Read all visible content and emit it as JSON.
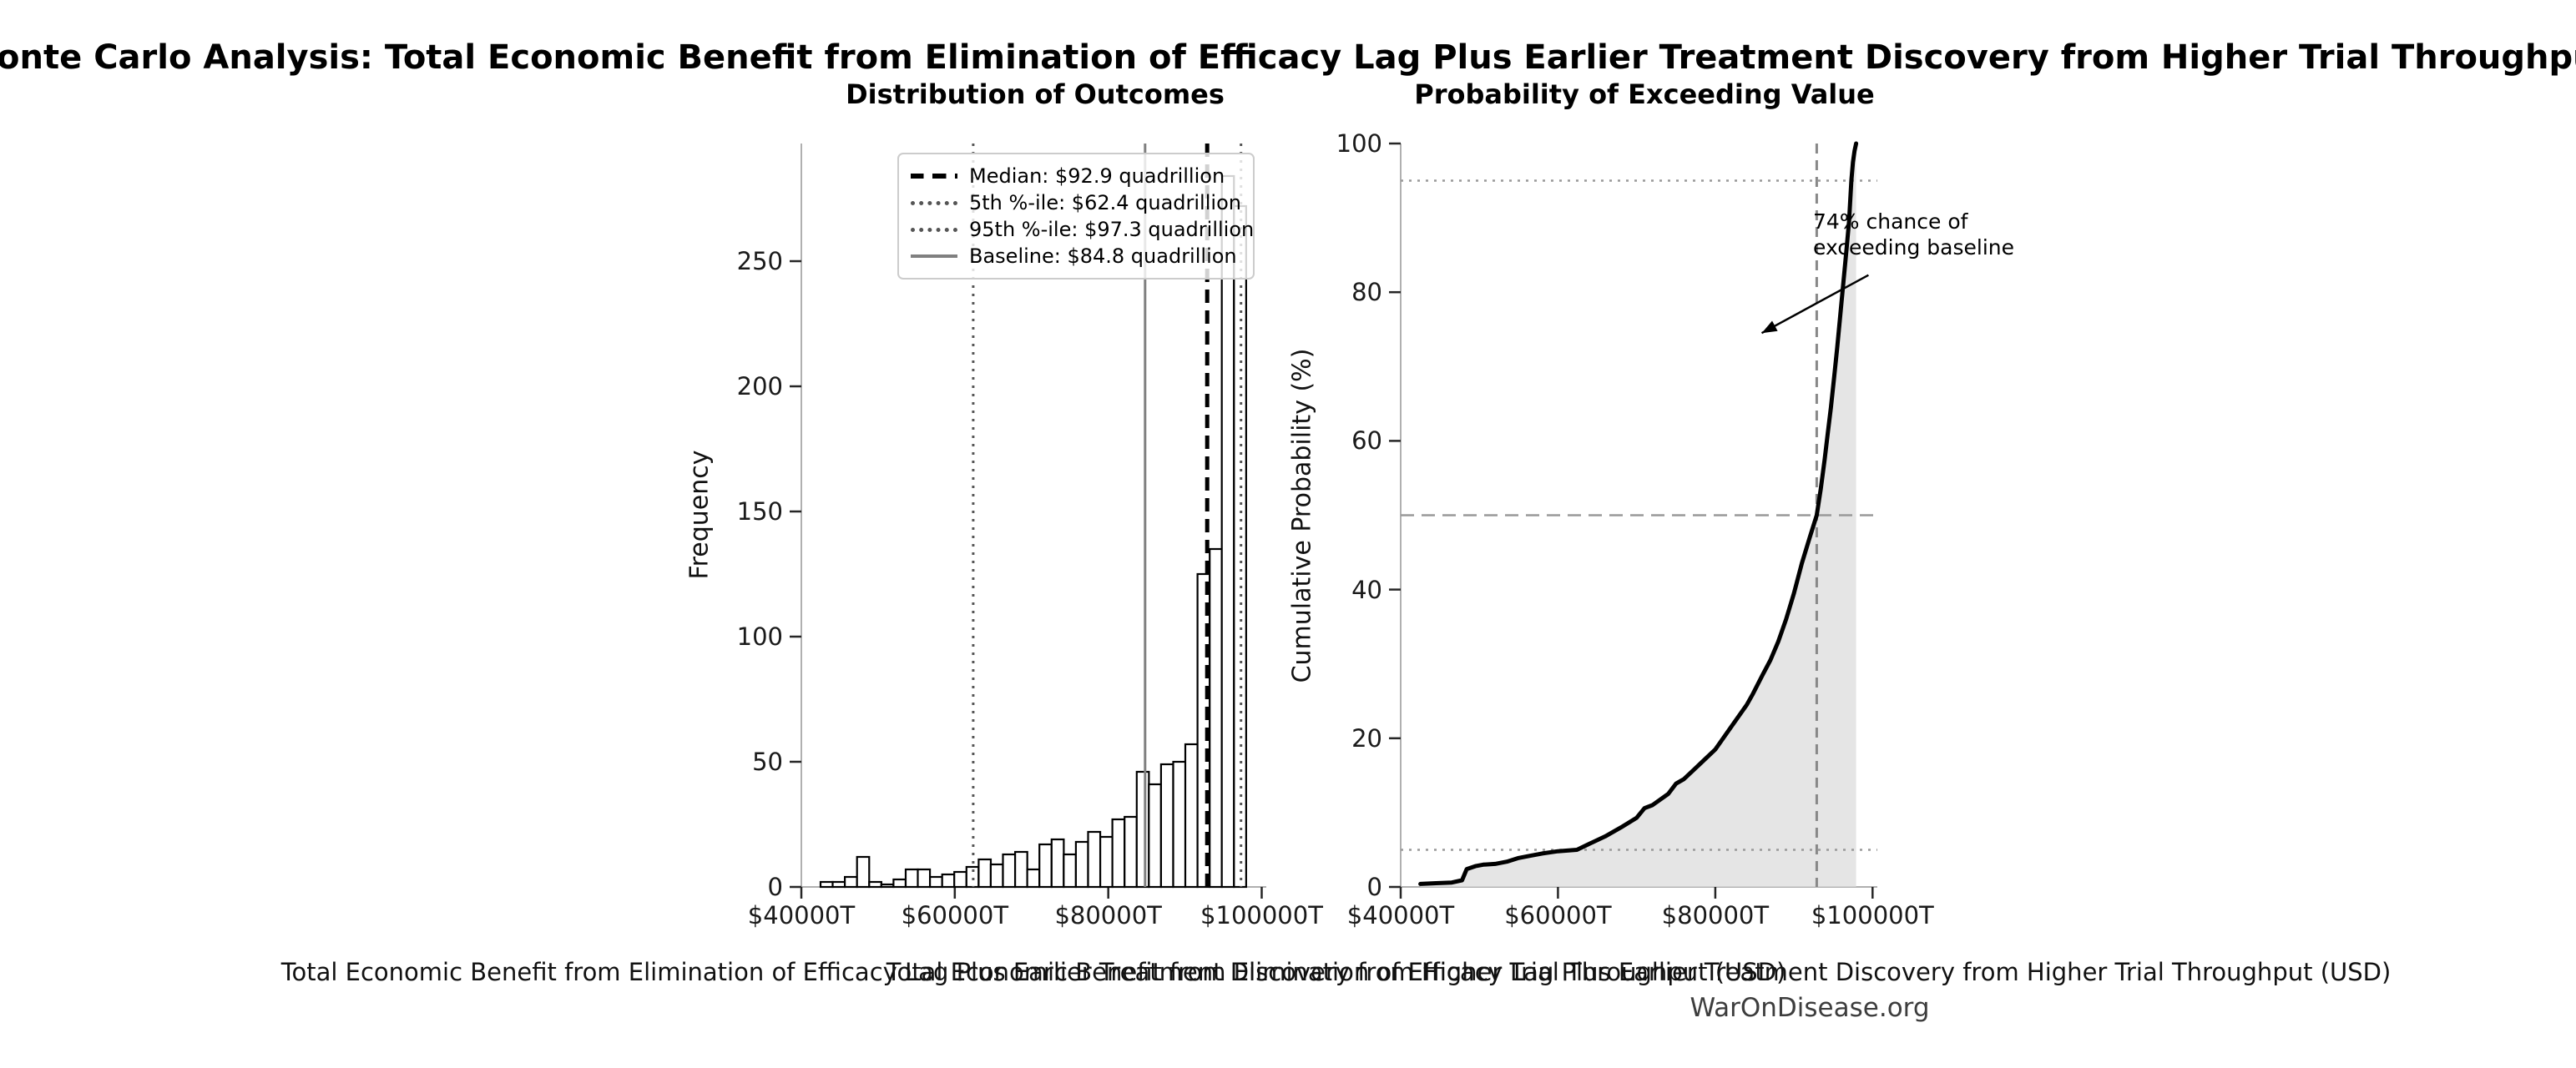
{
  "title": "Monte Carlo Analysis: Total Economic Benefit from Elimination of Efficacy Lag Plus Earlier Treatment Discovery from Higher Trial Throughput",
  "footer": "WarOnDisease.org",
  "colors": {
    "background": "#ffffff",
    "bar_fill": "#ffffff",
    "bar_edge": "#000000",
    "median_line": "#000000",
    "percentile_line": "#555555",
    "baseline_line": "#808080",
    "cdf_line": "#000000",
    "cdf_fill": "#dcdcdc",
    "grid_ref": "#999999",
    "spine": "#b0b0b0",
    "tick": "#262626",
    "footer_text": "#3d3d3d"
  },
  "chart_data": [
    {
      "type": "bar",
      "title": "Distribution of Outcomes",
      "xlabel": "Total Economic Benefit from Elimination of Efficacy Lag Plus Earlier Treatment Discovery from Higher Trial Throughput (USD)",
      "ylabel": "Frequency",
      "xlim": [
        40000,
        100600
      ],
      "ylim": [
        0,
        297
      ],
      "x_ticks": [
        40000,
        60000,
        80000,
        100000
      ],
      "x_tick_labels": [
        "$40000T",
        "$60000T",
        "$80000T",
        "$100000T"
      ],
      "y_ticks": [
        0,
        50,
        100,
        150,
        200,
        250
      ],
      "bin_start": 42500,
      "bin_width": 1585,
      "frequencies": [
        2,
        2,
        4,
        12,
        2,
        1,
        3,
        7,
        7,
        4,
        5,
        6,
        8,
        11,
        9,
        13,
        14,
        7,
        17,
        19,
        13,
        18,
        22,
        20,
        27,
        28,
        46,
        41,
        49,
        50,
        57,
        125,
        135,
        284,
        272
      ],
      "ref_lines": [
        {
          "name": "median",
          "value": 92900,
          "style": "dashed",
          "color": "#000000",
          "width": 5,
          "label": "Median: $92.9 quadrillion"
        },
        {
          "name": "p5",
          "value": 62400,
          "style": "dotted",
          "color": "#555555",
          "width": 3,
          "label": "5th %-ile: $62.4 quadrillion"
        },
        {
          "name": "p95",
          "value": 97300,
          "style": "dotted",
          "color": "#555555",
          "width": 3,
          "label": "95th %-ile: $97.3 quadrillion"
        },
        {
          "name": "baseline",
          "value": 84800,
          "style": "solid",
          "color": "#808080",
          "width": 3,
          "label": "Baseline: $84.8 quadrillion"
        }
      ]
    },
    {
      "type": "line",
      "title": "Probability of Exceeding Value",
      "xlabel": "Total Economic Benefit from Elimination of Efficacy Lag Plus Earlier Treatment Discovery from Higher Trial Throughput (USD)",
      "ylabel": "Cumulative Probability (%)",
      "xlim": [
        40000,
        100600
      ],
      "ylim": [
        0,
        100
      ],
      "x_ticks": [
        40000,
        60000,
        80000,
        100000
      ],
      "x_tick_labels": [
        "$40000T",
        "$60000T",
        "$80000T",
        "$100000T"
      ],
      "y_ticks": [
        0,
        20,
        40,
        60,
        80,
        100
      ],
      "points": [
        [
          42500,
          0.4
        ],
        [
          44500,
          0.5
        ],
        [
          46500,
          0.6
        ],
        [
          47800,
          0.9
        ],
        [
          48400,
          2.4
        ],
        [
          49500,
          2.8
        ],
        [
          50500,
          3.0
        ],
        [
          52000,
          3.1
        ],
        [
          53500,
          3.4
        ],
        [
          55000,
          3.9
        ],
        [
          56500,
          4.2
        ],
        [
          58000,
          4.5
        ],
        [
          60000,
          4.8
        ],
        [
          62400,
          5.0
        ],
        [
          64000,
          5.8
        ],
        [
          66000,
          6.8
        ],
        [
          68000,
          8.0
        ],
        [
          70000,
          9.3
        ],
        [
          71000,
          10.6
        ],
        [
          72000,
          11.0
        ],
        [
          74000,
          12.5
        ],
        [
          75000,
          13.9
        ],
        [
          76000,
          14.5
        ],
        [
          78000,
          16.5
        ],
        [
          80000,
          18.5
        ],
        [
          82000,
          21.5
        ],
        [
          84000,
          24.5
        ],
        [
          84800,
          26.0
        ],
        [
          86000,
          28.5
        ],
        [
          87000,
          30.5
        ],
        [
          88000,
          33.0
        ],
        [
          89000,
          36.0
        ],
        [
          90000,
          39.5
        ],
        [
          91000,
          43.5
        ],
        [
          92000,
          47.0
        ],
        [
          92900,
          50.0
        ],
        [
          93400,
          53.5
        ],
        [
          93900,
          57.5
        ],
        [
          94300,
          61.0
        ],
        [
          94700,
          64.5
        ],
        [
          95100,
          68.5
        ],
        [
          95500,
          72.5
        ],
        [
          95900,
          77.0
        ],
        [
          96300,
          81.5
        ],
        [
          96700,
          86.0
        ],
        [
          97000,
          89.5
        ],
        [
          97300,
          95.0
        ],
        [
          97500,
          97.5
        ],
        [
          97700,
          99.0
        ],
        [
          97900,
          100.0
        ]
      ],
      "h_lines": [
        {
          "y": 5,
          "style": "dotted",
          "color": "#999999"
        },
        {
          "y": 50,
          "style": "dashed",
          "color": "#999999"
        },
        {
          "y": 95,
          "style": "dotted",
          "color": "#999999"
        }
      ],
      "v_lines": [
        {
          "x": 92900,
          "style": "dashed",
          "color": "#888888"
        }
      ],
      "annotation": {
        "lines": [
          "74% chance of",
          "exceeding baseline"
        ],
        "exceed_baseline_pct": 74,
        "arrow_from": [
          99470,
          82.3
        ],
        "arrow_to": [
          85900,
          74.5
        ]
      }
    }
  ]
}
